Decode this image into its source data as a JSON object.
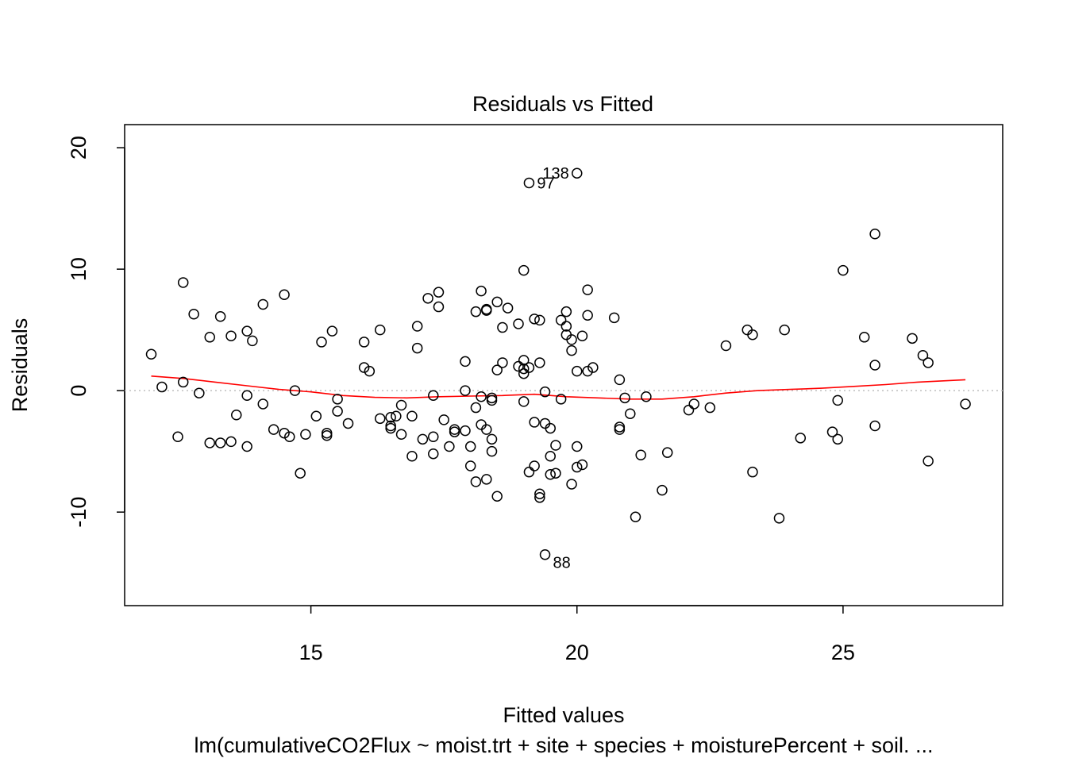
{
  "chart_data": {
    "type": "scatter",
    "title": "Residuals vs Fitted",
    "xlabel": "Fitted values",
    "ylabel": "Residuals",
    "subtitle": "lm(cumulativeCO2Flux ~ moist.trt + site + species + moisturePercent + soil. ...",
    "xlim": [
      11.5,
      28.0
    ],
    "ylim": [
      -17.7,
      21.9
    ],
    "xticks": [
      15,
      20,
      25
    ],
    "xtick_labels": [
      "15",
      "20",
      "25"
    ],
    "yticks": [
      -10,
      0,
      10,
      20
    ],
    "ytick_labels": [
      "-10",
      "0",
      "10",
      "20"
    ],
    "grid": false,
    "reference_line": {
      "y": 0,
      "style": "dotted",
      "color": "#bebebe"
    },
    "colors": {
      "points": "#000000",
      "smoother": "#ff0000",
      "reference": "#bebebe",
      "box": "#000000"
    },
    "labeled_points": [
      {
        "label": "138",
        "x": 20.0,
        "y": 17.9
      },
      {
        "label": "97",
        "x": 19.1,
        "y": 17.1
      },
      {
        "label": "88",
        "x": 19.4,
        "y": -13.5
      }
    ],
    "points": [
      {
        "x": 12.0,
        "y": 3.0
      },
      {
        "x": 12.2,
        "y": 0.3
      },
      {
        "x": 12.5,
        "y": -3.8
      },
      {
        "x": 12.6,
        "y": 8.9
      },
      {
        "x": 12.6,
        "y": 0.7
      },
      {
        "x": 12.8,
        "y": 6.3
      },
      {
        "x": 12.9,
        "y": -0.2
      },
      {
        "x": 13.1,
        "y": 4.4
      },
      {
        "x": 13.1,
        "y": -4.3
      },
      {
        "x": 13.3,
        "y": 6.1
      },
      {
        "x": 13.3,
        "y": -4.3
      },
      {
        "x": 13.5,
        "y": -4.2
      },
      {
        "x": 13.5,
        "y": 4.5
      },
      {
        "x": 13.6,
        "y": -2.0
      },
      {
        "x": 13.8,
        "y": 4.9
      },
      {
        "x": 13.8,
        "y": -0.4
      },
      {
        "x": 13.8,
        "y": -4.6
      },
      {
        "x": 13.9,
        "y": 4.1
      },
      {
        "x": 14.1,
        "y": 7.1
      },
      {
        "x": 14.1,
        "y": -1.1
      },
      {
        "x": 14.3,
        "y": -3.2
      },
      {
        "x": 14.5,
        "y": 7.9
      },
      {
        "x": 14.5,
        "y": -3.5
      },
      {
        "x": 14.6,
        "y": -3.8
      },
      {
        "x": 14.7,
        "y": 0.0
      },
      {
        "x": 14.8,
        "y": -6.8
      },
      {
        "x": 14.9,
        "y": -3.6
      },
      {
        "x": 15.1,
        "y": -2.1
      },
      {
        "x": 15.2,
        "y": 4.0
      },
      {
        "x": 15.3,
        "y": -3.5
      },
      {
        "x": 15.3,
        "y": -3.7
      },
      {
        "x": 15.4,
        "y": 4.9
      },
      {
        "x": 15.5,
        "y": -0.7
      },
      {
        "x": 15.5,
        "y": -1.7
      },
      {
        "x": 15.7,
        "y": -2.7
      },
      {
        "x": 16.0,
        "y": 4.0
      },
      {
        "x": 16.0,
        "y": 1.9
      },
      {
        "x": 16.1,
        "y": 1.6
      },
      {
        "x": 16.3,
        "y": -2.3
      },
      {
        "x": 16.3,
        "y": 5.0
      },
      {
        "x": 16.5,
        "y": -2.2
      },
      {
        "x": 16.5,
        "y": -2.9
      },
      {
        "x": 16.5,
        "y": -3.1
      },
      {
        "x": 16.6,
        "y": -2.1
      },
      {
        "x": 16.7,
        "y": -1.2
      },
      {
        "x": 16.7,
        "y": -3.6
      },
      {
        "x": 16.9,
        "y": -2.1
      },
      {
        "x": 16.9,
        "y": -5.4
      },
      {
        "x": 17.0,
        "y": 5.3
      },
      {
        "x": 17.0,
        "y": 3.5
      },
      {
        "x": 17.1,
        "y": -4.0
      },
      {
        "x": 17.2,
        "y": 7.6
      },
      {
        "x": 17.3,
        "y": -3.8
      },
      {
        "x": 17.3,
        "y": -5.2
      },
      {
        "x": 17.3,
        "y": -0.4
      },
      {
        "x": 17.4,
        "y": 8.1
      },
      {
        "x": 17.4,
        "y": 6.9
      },
      {
        "x": 17.5,
        "y": -2.4
      },
      {
        "x": 17.6,
        "y": -4.6
      },
      {
        "x": 17.7,
        "y": -3.4
      },
      {
        "x": 17.7,
        "y": -3.2
      },
      {
        "x": 17.9,
        "y": -3.3
      },
      {
        "x": 17.9,
        "y": 2.4
      },
      {
        "x": 17.9,
        "y": 0.0
      },
      {
        "x": 18.0,
        "y": -6.2
      },
      {
        "x": 18.0,
        "y": -4.6
      },
      {
        "x": 18.1,
        "y": 6.5
      },
      {
        "x": 18.1,
        "y": -1.4
      },
      {
        "x": 18.1,
        "y": -7.5
      },
      {
        "x": 18.2,
        "y": 8.2
      },
      {
        "x": 18.2,
        "y": -2.8
      },
      {
        "x": 18.2,
        "y": -0.5
      },
      {
        "x": 18.3,
        "y": 6.7
      },
      {
        "x": 18.3,
        "y": 6.6
      },
      {
        "x": 18.3,
        "y": -3.2
      },
      {
        "x": 18.3,
        "y": -7.3
      },
      {
        "x": 18.4,
        "y": -4.0
      },
      {
        "x": 18.4,
        "y": -0.6
      },
      {
        "x": 18.4,
        "y": -0.8
      },
      {
        "x": 18.4,
        "y": -5.0
      },
      {
        "x": 18.5,
        "y": 7.3
      },
      {
        "x": 18.5,
        "y": 1.7
      },
      {
        "x": 18.5,
        "y": -8.7
      },
      {
        "x": 18.6,
        "y": 5.2
      },
      {
        "x": 18.6,
        "y": 2.3
      },
      {
        "x": 18.7,
        "y": 6.8
      },
      {
        "x": 18.9,
        "y": 5.5
      },
      {
        "x": 18.9,
        "y": 2.0
      },
      {
        "x": 19.0,
        "y": 9.9
      },
      {
        "x": 19.0,
        "y": 2.5
      },
      {
        "x": 19.0,
        "y": 1.8
      },
      {
        "x": 19.0,
        "y": -0.9
      },
      {
        "x": 19.0,
        "y": 1.4
      },
      {
        "x": 19.1,
        "y": -6.7
      },
      {
        "x": 19.1,
        "y": 17.1
      },
      {
        "x": 19.1,
        "y": 1.9
      },
      {
        "x": 19.2,
        "y": -6.2
      },
      {
        "x": 19.2,
        "y": 5.9
      },
      {
        "x": 19.2,
        "y": -2.6
      },
      {
        "x": 19.3,
        "y": 2.3
      },
      {
        "x": 19.3,
        "y": 5.8
      },
      {
        "x": 19.3,
        "y": -8.8
      },
      {
        "x": 19.3,
        "y": -8.5
      },
      {
        "x": 19.4,
        "y": -2.7
      },
      {
        "x": 19.4,
        "y": -0.1
      },
      {
        "x": 19.4,
        "y": -13.5
      },
      {
        "x": 19.5,
        "y": -6.9
      },
      {
        "x": 19.5,
        "y": -5.4
      },
      {
        "x": 19.5,
        "y": -3.1
      },
      {
        "x": 19.6,
        "y": -6.8
      },
      {
        "x": 19.6,
        "y": -4.5
      },
      {
        "x": 19.7,
        "y": -0.7
      },
      {
        "x": 19.7,
        "y": 5.8
      },
      {
        "x": 19.8,
        "y": 4.6
      },
      {
        "x": 19.8,
        "y": 6.5
      },
      {
        "x": 19.8,
        "y": 5.3
      },
      {
        "x": 19.9,
        "y": 4.2
      },
      {
        "x": 19.9,
        "y": 3.3
      },
      {
        "x": 19.9,
        "y": -7.7
      },
      {
        "x": 20.0,
        "y": 1.6
      },
      {
        "x": 20.0,
        "y": -4.6
      },
      {
        "x": 20.0,
        "y": -6.3
      },
      {
        "x": 20.0,
        "y": 17.9
      },
      {
        "x": 20.1,
        "y": 4.5
      },
      {
        "x": 20.1,
        "y": -6.1
      },
      {
        "x": 20.2,
        "y": 8.3
      },
      {
        "x": 20.2,
        "y": 1.6
      },
      {
        "x": 20.2,
        "y": 6.2
      },
      {
        "x": 20.3,
        "y": 1.9
      },
      {
        "x": 20.7,
        "y": 6.0
      },
      {
        "x": 20.8,
        "y": -3.2
      },
      {
        "x": 20.8,
        "y": -3.0
      },
      {
        "x": 20.8,
        "y": 0.9
      },
      {
        "x": 20.9,
        "y": -0.6
      },
      {
        "x": 21.0,
        "y": -1.9
      },
      {
        "x": 21.1,
        "y": -10.4
      },
      {
        "x": 21.2,
        "y": -5.3
      },
      {
        "x": 21.3,
        "y": -0.5
      },
      {
        "x": 21.6,
        "y": -8.2
      },
      {
        "x": 21.7,
        "y": -5.1
      },
      {
        "x": 22.1,
        "y": -1.6
      },
      {
        "x": 22.2,
        "y": -1.1
      },
      {
        "x": 22.5,
        "y": -1.4
      },
      {
        "x": 22.8,
        "y": 3.7
      },
      {
        "x": 23.2,
        "y": 5.0
      },
      {
        "x": 23.3,
        "y": 4.6
      },
      {
        "x": 23.3,
        "y": -6.7
      },
      {
        "x": 23.8,
        "y": -10.5
      },
      {
        "x": 23.9,
        "y": 5.0
      },
      {
        "x": 24.2,
        "y": -3.9
      },
      {
        "x": 24.8,
        "y": -3.4
      },
      {
        "x": 24.9,
        "y": -0.8
      },
      {
        "x": 24.9,
        "y": -4.0
      },
      {
        "x": 25.0,
        "y": 9.9
      },
      {
        "x": 25.4,
        "y": 4.4
      },
      {
        "x": 25.6,
        "y": 12.9
      },
      {
        "x": 25.6,
        "y": 2.1
      },
      {
        "x": 25.6,
        "y": -2.9
      },
      {
        "x": 26.3,
        "y": 4.3
      },
      {
        "x": 26.5,
        "y": 2.9
      },
      {
        "x": 26.6,
        "y": 2.3
      },
      {
        "x": 26.6,
        "y": -5.8
      },
      {
        "x": 27.3,
        "y": -1.1
      }
    ],
    "smoother": [
      {
        "x": 12.0,
        "y": 1.2
      },
      {
        "x": 12.6,
        "y": 1.0
      },
      {
        "x": 13.2,
        "y": 0.7
      },
      {
        "x": 13.8,
        "y": 0.4
      },
      {
        "x": 14.4,
        "y": 0.1
      },
      {
        "x": 15.0,
        "y": -0.1
      },
      {
        "x": 15.6,
        "y": -0.4
      },
      {
        "x": 16.2,
        "y": -0.55
      },
      {
        "x": 16.8,
        "y": -0.6
      },
      {
        "x": 17.4,
        "y": -0.5
      },
      {
        "x": 18.0,
        "y": -0.45
      },
      {
        "x": 18.6,
        "y": -0.4
      },
      {
        "x": 19.2,
        "y": -0.3
      },
      {
        "x": 19.8,
        "y": -0.5
      },
      {
        "x": 20.4,
        "y": -0.6
      },
      {
        "x": 21.0,
        "y": -0.7
      },
      {
        "x": 21.6,
        "y": -0.7
      },
      {
        "x": 22.2,
        "y": -0.5
      },
      {
        "x": 22.8,
        "y": -0.2
      },
      {
        "x": 23.4,
        "y": 0.0
      },
      {
        "x": 24.0,
        "y": 0.1
      },
      {
        "x": 24.6,
        "y": 0.2
      },
      {
        "x": 25.2,
        "y": 0.35
      },
      {
        "x": 25.8,
        "y": 0.5
      },
      {
        "x": 26.4,
        "y": 0.7
      },
      {
        "x": 27.3,
        "y": 0.9
      }
    ]
  }
}
